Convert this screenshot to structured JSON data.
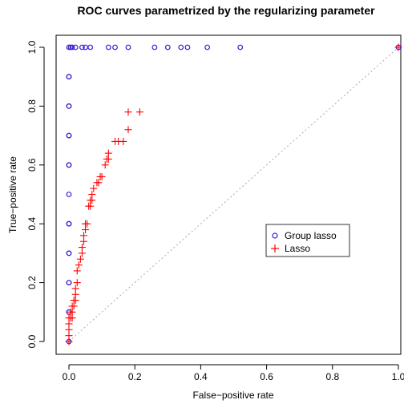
{
  "chart_data": {
    "type": "scatter",
    "title": "ROC curves parametrized by the regularizing parameter",
    "xlabel": "False−positive rate",
    "ylabel": "True−positive rate",
    "xlim": [
      0,
      1
    ],
    "ylim": [
      0,
      1
    ],
    "xticks": [
      "0.0",
      "0.2",
      "0.4",
      "0.6",
      "0.8",
      "1.0"
    ],
    "yticks": [
      "0.0",
      "0.2",
      "0.4",
      "0.6",
      "0.8",
      "1.0"
    ],
    "xtick_values": [
      0,
      0.2,
      0.4,
      0.6,
      0.8,
      1.0
    ],
    "ytick_values": [
      0,
      0.2,
      0.4,
      0.6,
      0.8,
      1.0
    ],
    "grid": false,
    "legend_position": "center-right",
    "reference_line": {
      "from": [
        0,
        0
      ],
      "to": [
        1,
        1
      ],
      "style": "dotted",
      "color": "#aaaaaa"
    },
    "series": [
      {
        "name": "Group lasso",
        "marker": "circle",
        "color": "#3a1fd0",
        "points": [
          [
            0,
            0
          ],
          [
            0,
            0.1
          ],
          [
            0,
            0.1
          ],
          [
            0,
            0.2
          ],
          [
            0,
            0.2
          ],
          [
            0,
            0.3
          ],
          [
            0,
            0.3
          ],
          [
            0,
            0.4
          ],
          [
            0,
            0.4
          ],
          [
            0,
            0.5
          ],
          [
            0,
            0.6
          ],
          [
            0,
            0.6
          ],
          [
            0,
            0.7
          ],
          [
            0,
            0.7
          ],
          [
            0,
            0.8
          ],
          [
            0,
            0.8
          ],
          [
            0,
            0.9
          ],
          [
            0,
            0.9
          ],
          [
            0,
            1
          ],
          [
            0.005,
            1
          ],
          [
            0.01,
            1
          ],
          [
            0.02,
            1
          ],
          [
            0.04,
            1
          ],
          [
            0.05,
            1
          ],
          [
            0.065,
            1
          ],
          [
            0.12,
            1
          ],
          [
            0.14,
            1
          ],
          [
            0.18,
            1
          ],
          [
            0.26,
            1
          ],
          [
            0.3,
            1
          ],
          [
            0.34,
            1
          ],
          [
            0.36,
            1
          ],
          [
            0.42,
            1
          ],
          [
            0.52,
            1
          ],
          [
            1,
            1
          ]
        ]
      },
      {
        "name": "Lasso",
        "marker": "plus",
        "color": "#ff0000",
        "points": [
          [
            0,
            0
          ],
          [
            0,
            0.02
          ],
          [
            0,
            0.04
          ],
          [
            0,
            0.06
          ],
          [
            0,
            0.08
          ],
          [
            0.005,
            0.08
          ],
          [
            0.01,
            0.08
          ],
          [
            0.005,
            0.1
          ],
          [
            0.01,
            0.1
          ],
          [
            0.01,
            0.12
          ],
          [
            0.015,
            0.12
          ],
          [
            0.015,
            0.14
          ],
          [
            0.02,
            0.14
          ],
          [
            0.02,
            0.16
          ],
          [
            0.02,
            0.18
          ],
          [
            0.025,
            0.2
          ],
          [
            0.025,
            0.24
          ],
          [
            0.03,
            0.26
          ],
          [
            0.035,
            0.28
          ],
          [
            0.04,
            0.3
          ],
          [
            0.04,
            0.32
          ],
          [
            0.045,
            0.34
          ],
          [
            0.045,
            0.36
          ],
          [
            0.05,
            0.38
          ],
          [
            0.05,
            0.4
          ],
          [
            0.055,
            0.4
          ],
          [
            0.06,
            0.46
          ],
          [
            0.065,
            0.46
          ],
          [
            0.065,
            0.48
          ],
          [
            0.07,
            0.48
          ],
          [
            0.07,
            0.5
          ],
          [
            0.075,
            0.52
          ],
          [
            0.085,
            0.54
          ],
          [
            0.09,
            0.54
          ],
          [
            0.095,
            0.56
          ],
          [
            0.1,
            0.56
          ],
          [
            0.11,
            0.6
          ],
          [
            0.115,
            0.62
          ],
          [
            0.12,
            0.64
          ],
          [
            0.12,
            0.62
          ],
          [
            0.14,
            0.68
          ],
          [
            0.15,
            0.68
          ],
          [
            0.165,
            0.68
          ],
          [
            0.18,
            0.72
          ],
          [
            0.18,
            0.78
          ],
          [
            0.215,
            0.78
          ],
          [
            1,
            1
          ]
        ]
      }
    ]
  }
}
